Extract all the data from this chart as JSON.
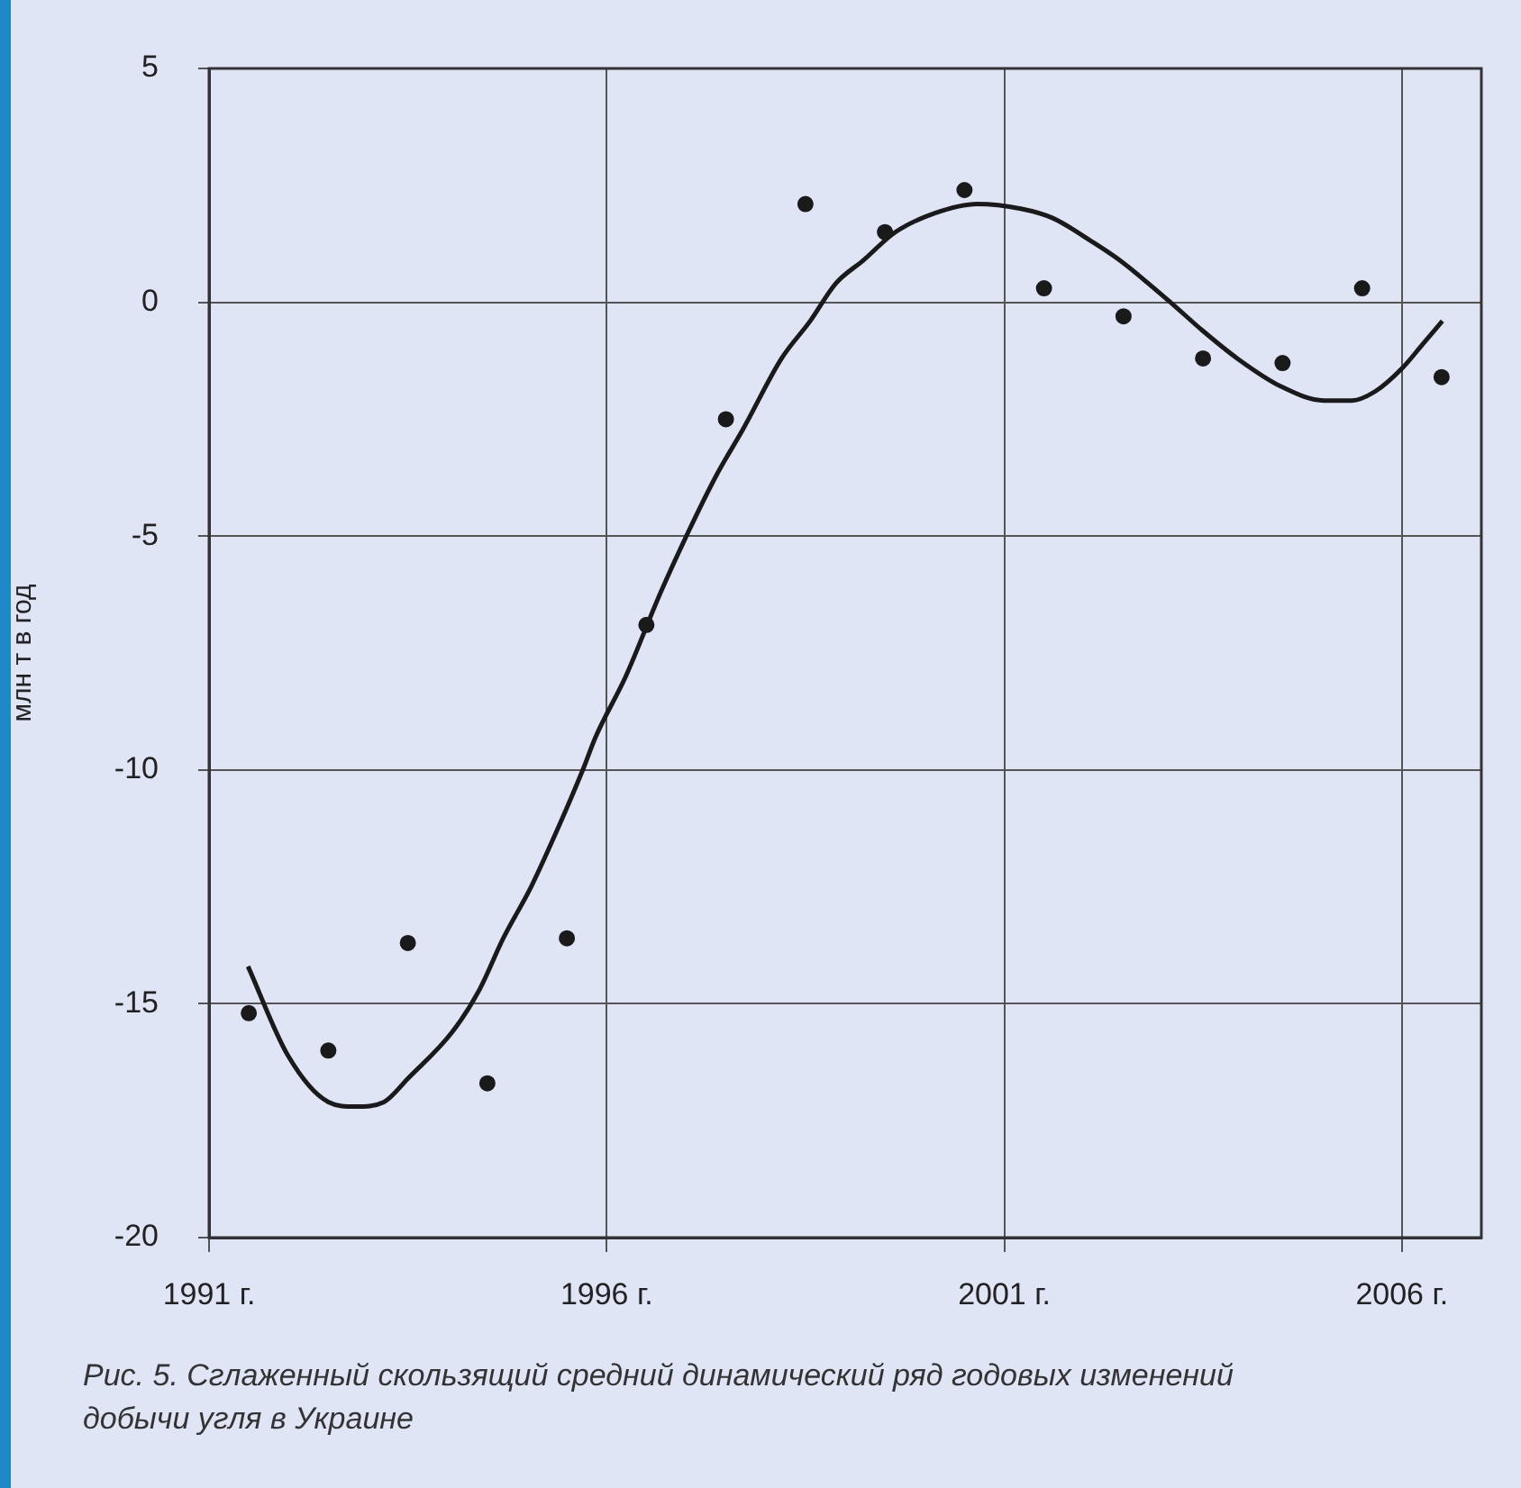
{
  "chart_data": {
    "type": "scatter",
    "ylabel": "млн т в год",
    "annotations": [
      "Рис. 5. Сглаженный скользящий средний динамический ряд годовых изменений добычи угля в Украине"
    ],
    "xlim": [
      1991,
      2007
    ],
    "xticks": [
      {
        "value": 1991,
        "label": "1991 г."
      },
      {
        "value": 1996,
        "label": "1996 г."
      },
      {
        "value": 2001,
        "label": "2001 г."
      },
      {
        "value": 2006,
        "label": "2006 г."
      }
    ],
    "ylim": [
      -20,
      5
    ],
    "yticks": [
      -20,
      -15,
      -10,
      -5,
      0,
      5
    ],
    "grid": true,
    "legend": false,
    "series": [
      {
        "marker": "circle",
        "color": "#1a1a1a",
        "x": [
          1991.5,
          1992.5,
          1993.5,
          1994.5,
          1995.5,
          1996.5,
          1997.5,
          1998.5,
          1999.5,
          2000.5,
          2001.5,
          2002.5,
          2003.5,
          2004.5,
          2005.5,
          2006.5
        ],
        "values": [
          -15.2,
          -16.0,
          -13.7,
          -16.7,
          -13.6,
          -6.9,
          -2.5,
          2.1,
          1.5,
          2.4,
          0.3,
          -0.3,
          -1.2,
          -1.3,
          0.3,
          -1.6
        ]
      },
      {
        "type": "line",
        "marker": "none",
        "color": "#1a1a1a",
        "x": [
          1991.49,
          1991.99,
          1992.5,
          1992.84,
          1993.2,
          1993.5,
          1994.06,
          1994.4,
          1994.7,
          1995.05,
          1995.4,
          1995.7,
          1995.86,
          1996.24,
          1996.68,
          1997.03,
          1997.38,
          1997.72,
          1998.2,
          1998.56,
          1998.88,
          1999.23,
          1999.63,
          2000.12,
          2000.66,
          2001.21,
          2001.61,
          2002.1,
          2002.45,
          2003.09,
          2003.49,
          2003.93,
          2004.48,
          2005.02,
          2005.37,
          2005.67,
          2006.01,
          2006.26,
          2006.51
        ],
        "values": [
          -14.2,
          -16.1,
          -17.1,
          -17.2,
          -17.1,
          -16.6,
          -15.6,
          -14.7,
          -13.6,
          -12.5,
          -11.2,
          -10.0,
          -9.3,
          -8.0,
          -6.2,
          -4.9,
          -3.7,
          -2.7,
          -1.2,
          -0.4,
          0.4,
          0.9,
          1.5,
          1.9,
          2.1,
          2.0,
          1.8,
          1.3,
          0.9,
          0.0,
          -0.6,
          -1.2,
          -1.8,
          -2.1,
          -2.1,
          -1.9,
          -1.4,
          -0.9,
          -0.4
        ]
      }
    ]
  }
}
